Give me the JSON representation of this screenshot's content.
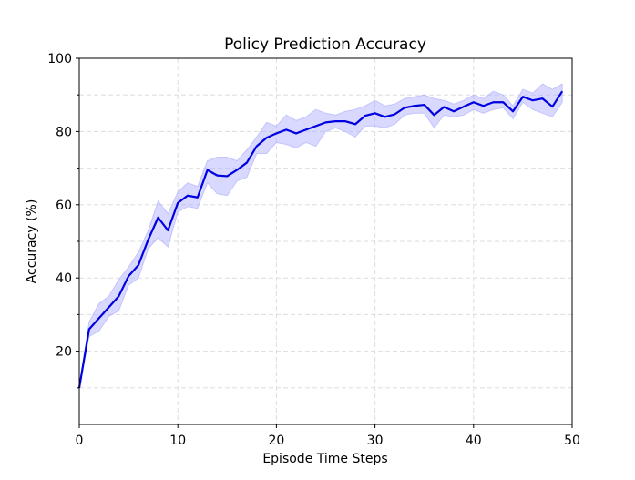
{
  "chart_data": {
    "type": "line",
    "title": "Policy Prediction Accuracy",
    "xlabel": "Episode Time Steps",
    "ylabel": "Accuracy (%)",
    "x": [
      0,
      1,
      2,
      3,
      4,
      5,
      6,
      7,
      8,
      9,
      10,
      11,
      12,
      13,
      14,
      15,
      16,
      17,
      18,
      19,
      20,
      21,
      22,
      23,
      24,
      25,
      26,
      27,
      28,
      29,
      30,
      31,
      32,
      33,
      34,
      35,
      36,
      37,
      38,
      39,
      40,
      41,
      42,
      43,
      44,
      45,
      46,
      47,
      48,
      49
    ],
    "series": [
      {
        "color": "#0000e0",
        "band_color": "#aaaaff",
        "values": [
          10,
          26,
          29,
          32,
          35,
          40.5,
          43.5,
          50.5,
          56.5,
          53,
          60.5,
          62.5,
          62,
          69.5,
          68,
          67.8,
          69.5,
          71.5,
          76,
          78.3,
          79.5,
          80.5,
          79.5,
          80.5,
          81.5,
          82.5,
          82.8,
          82.8,
          82,
          84.3,
          85,
          84,
          84.7,
          86.5,
          87,
          87.3,
          84.5,
          86.7,
          85.5,
          86.8,
          88,
          87,
          88,
          88,
          85.5,
          89.5,
          88.5,
          89,
          86.8,
          91
        ],
        "upper": [
          10,
          28,
          33,
          35,
          39.5,
          43,
          47,
          53,
          61,
          57.5,
          63.5,
          66,
          65,
          72,
          73,
          73,
          72,
          75,
          78.5,
          82.5,
          81.5,
          84.5,
          83,
          84,
          86,
          85,
          84.5,
          85.5,
          86,
          87,
          88.5,
          87,
          87.5,
          89,
          89.5,
          90,
          89,
          88.5,
          87.5,
          88.5,
          90,
          89,
          91,
          90,
          87,
          91.5,
          90.5,
          93,
          91.5,
          93
        ],
        "lower": [
          10,
          24,
          25.5,
          29.5,
          31,
          38,
          40,
          48,
          51,
          48.5,
          58,
          59.5,
          59,
          66,
          63,
          62.5,
          66.5,
          67.5,
          74,
          74,
          77,
          76.5,
          75.5,
          77,
          76,
          80,
          81,
          80,
          78.5,
          81.5,
          81.5,
          81,
          82,
          84.5,
          85,
          85,
          81,
          84.5,
          84,
          84.5,
          86,
          85,
          86,
          86.5,
          83.5,
          88,
          86,
          85,
          84,
          88
        ]
      }
    ],
    "xlim": [
      0,
      50
    ],
    "xticks": [
      0,
      10,
      20,
      30,
      40,
      50
    ],
    "ylim": [
      0,
      100
    ],
    "yticks": [
      20,
      40,
      60,
      80,
      100
    ],
    "yminor": [
      10,
      30,
      50,
      70,
      90
    ],
    "grid": true
  }
}
